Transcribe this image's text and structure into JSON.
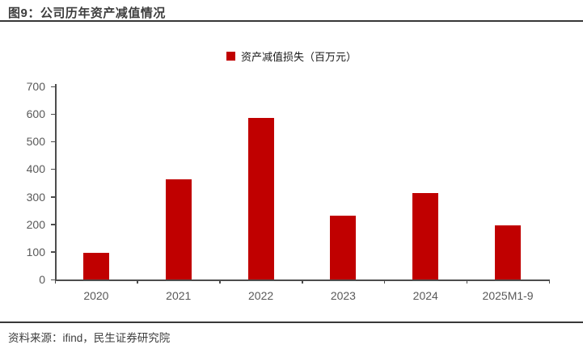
{
  "header": {
    "title": "图9：公司历年资产减值情况"
  },
  "legend": {
    "label": "资产减值损失（百万元）",
    "marker_color": "#c00000"
  },
  "chart_data": {
    "type": "bar",
    "title": "图9：公司历年资产减值情况",
    "categories": [
      "2020",
      "2021",
      "2022",
      "2023",
      "2024",
      "2025M1-9"
    ],
    "series": [
      {
        "name": "资产减值损失（百万元）",
        "values": [
          96,
          362,
          585,
          231,
          313,
          197
        ]
      }
    ],
    "xlabel": "",
    "ylabel": "",
    "ylim": [
      0,
      700
    ],
    "yticks": [
      0,
      100,
      200,
      300,
      400,
      500,
      600,
      700
    ],
    "grid": false,
    "legend_position": "top-center",
    "bar_color": "#c00000"
  },
  "footer": {
    "source": "资料来源：ifind，民生证券研究院"
  },
  "colors": {
    "bar": "#c00000",
    "axis": "#4d4d4d",
    "tick_label": "#595959",
    "title_text": "#3d3d3d",
    "rule": "#383838"
  }
}
